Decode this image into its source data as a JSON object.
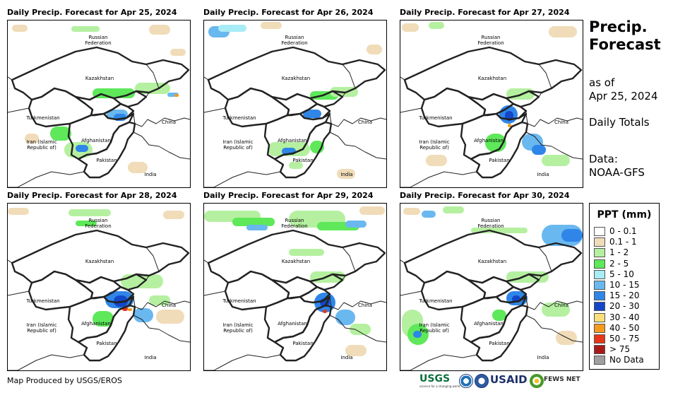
{
  "panels": [
    {
      "title": "Daily Precip. Forecast for Apr 25, 2024"
    },
    {
      "title": "Daily Precip. Forecast for Apr 26, 2024"
    },
    {
      "title": "Daily Precip. Forecast for Apr 27, 2024"
    },
    {
      "title": "Daily Precip. Forecast for Apr 28, 2024"
    },
    {
      "title": "Daily Precip. Forecast for Apr 29, 2024"
    },
    {
      "title": "Daily Precip. Forecast for Apr 30, 2024"
    }
  ],
  "map_labels": {
    "russia_line1": "Russian",
    "russia_line2": "Federation",
    "kazakhstan": "Kazakhstan",
    "turkmenistan": "Turkmenistan",
    "china": "China",
    "iran_line1": "Iran  (Islamic",
    "iran_line2": "Republic of)",
    "afghanistan": "Afghanistan",
    "pakistan": "Pakistan",
    "india": "India"
  },
  "sidebar": {
    "title_line1": "Precip.",
    "title_line2": "Forecast",
    "asof_line1": "as of",
    "asof_line2": "Apr 25, 2024",
    "totals": "Daily Totals",
    "data_line1": "Data:",
    "data_line2": "NOAA-GFS"
  },
  "legend": {
    "title": "PPT (mm)",
    "items": [
      {
        "label": "0 - 0.1",
        "color": "#ffffff"
      },
      {
        "label": "0.1 - 1",
        "color": "#f0dcb8"
      },
      {
        "label": "1 - 2",
        "color": "#b5f0a0"
      },
      {
        "label": "2 - 5",
        "color": "#5ee85a"
      },
      {
        "label": "5 - 10",
        "color": "#a8ecf5"
      },
      {
        "label": "10 - 15",
        "color": "#6ab8f0"
      },
      {
        "label": "15 - 20",
        "color": "#2f86e8"
      },
      {
        "label": "20 - 30",
        "color": "#1446c8"
      },
      {
        "label": "30 - 40",
        "color": "#fbe07a"
      },
      {
        "label": "40 - 50",
        "color": "#f59a1e"
      },
      {
        "label": "50 - 75",
        "color": "#e8361a"
      },
      {
        "label": "> 75",
        "color": "#a81a1a"
      },
      {
        "label": "No Data",
        "color": "#a0a0a0"
      }
    ]
  },
  "footer": {
    "credit": "Map Produced by USGS/EROS",
    "usgs": "USGS",
    "usgs_tagline": "science for a changing world",
    "usaid": "USAID",
    "fews": "FEWS NET"
  }
}
